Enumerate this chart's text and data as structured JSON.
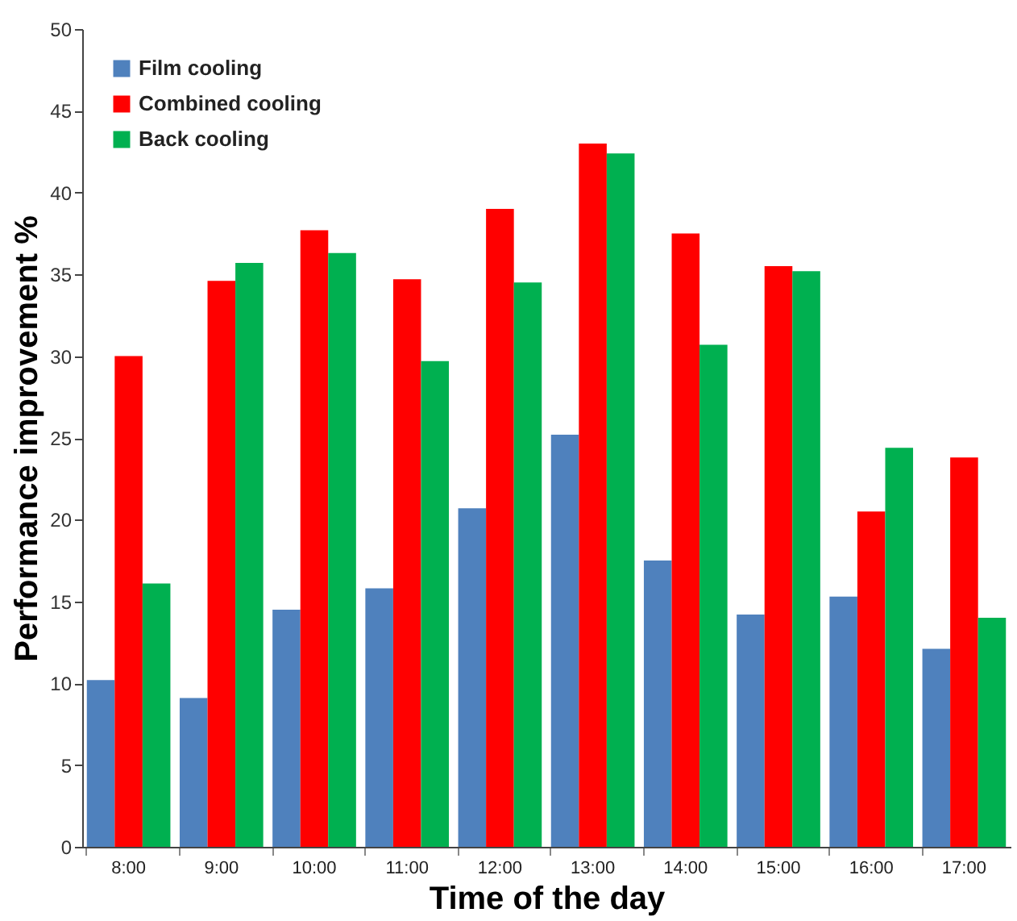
{
  "chart_data": {
    "type": "bar",
    "xlabel": "Time of the day",
    "ylabel": "Performance improvement %",
    "categories": [
      "8:00",
      "9:00",
      "10:00",
      "11:00",
      "12:00",
      "13:00",
      "14:00",
      "15:00",
      "16:00",
      "17:00"
    ],
    "series": [
      {
        "name": "Film cooling",
        "color": "#4f81bd",
        "values": [
          10.2,
          9.1,
          14.5,
          15.8,
          20.7,
          25.2,
          17.5,
          14.2,
          15.3,
          12.1
        ]
      },
      {
        "name": "Combined cooling",
        "color": "#ff0000",
        "values": [
          30.0,
          34.6,
          37.7,
          34.7,
          39.0,
          43.0,
          37.5,
          35.5,
          20.5,
          23.8
        ]
      },
      {
        "name": "Back cooling",
        "color": "#00b050",
        "values": [
          16.1,
          35.7,
          36.3,
          29.7,
          34.5,
          42.4,
          30.7,
          35.2,
          24.4,
          14.0
        ]
      }
    ],
    "ylim": [
      0,
      50
    ],
    "yticks": [
      0,
      5,
      10,
      15,
      20,
      25,
      30,
      35,
      40,
      45,
      50
    ],
    "grid": false,
    "legend": "top left"
  }
}
